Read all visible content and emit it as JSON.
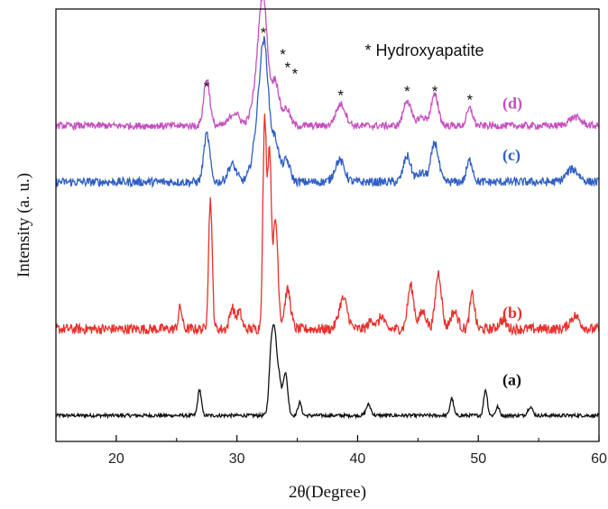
{
  "chart_data": {
    "type": "line",
    "xlabel": "2θ(Degree)",
    "ylabel": "Intensity (a. u.)",
    "xlim": [
      15,
      60
    ],
    "xticks": [
      "20",
      "30",
      "40",
      "50",
      "60"
    ],
    "y_ticks_shown": false,
    "legend": {
      "text": "* Hydroxyapatite",
      "position": "top-right"
    },
    "peak_marker": "*",
    "hydroxyapatite_peaks": [
      27.5,
      32.2,
      33.2,
      33.6,
      34.1,
      38.6,
      44.1,
      46.4,
      49.3
    ],
    "series": [
      {
        "name": "(a)",
        "color": "#111111",
        "baseline": 0.06,
        "noise": 0.004,
        "peaks": [
          [
            26.9,
            0.06,
            0.15
          ],
          [
            32.9,
            0.18,
            0.2
          ],
          [
            33.2,
            0.12,
            0.15
          ],
          [
            33.5,
            0.08,
            0.15
          ],
          [
            34.0,
            0.1,
            0.2
          ],
          [
            35.2,
            0.03,
            0.15
          ],
          [
            40.9,
            0.025,
            0.2
          ],
          [
            47.8,
            0.04,
            0.15
          ],
          [
            50.6,
            0.06,
            0.15
          ],
          [
            51.6,
            0.02,
            0.15
          ],
          [
            54.3,
            0.02,
            0.2
          ]
        ]
      },
      {
        "name": "(b)",
        "color": "#e8312c",
        "baseline": 0.26,
        "noise": 0.012,
        "peaks": [
          [
            25.3,
            0.05,
            0.15
          ],
          [
            27.8,
            0.3,
            0.15
          ],
          [
            29.6,
            0.05,
            0.2
          ],
          [
            30.2,
            0.04,
            0.2
          ],
          [
            32.3,
            0.48,
            0.15
          ],
          [
            32.7,
            0.4,
            0.15
          ],
          [
            33.2,
            0.25,
            0.2
          ],
          [
            34.2,
            0.09,
            0.25
          ],
          [
            38.8,
            0.07,
            0.35
          ],
          [
            41.2,
            0.02,
            0.3
          ],
          [
            42.0,
            0.03,
            0.2
          ],
          [
            44.4,
            0.1,
            0.25
          ],
          [
            45.4,
            0.04,
            0.3
          ],
          [
            46.7,
            0.13,
            0.25
          ],
          [
            48.0,
            0.04,
            0.3
          ],
          [
            49.5,
            0.08,
            0.2
          ],
          [
            52.0,
            0.02,
            0.3
          ],
          [
            58.0,
            0.03,
            0.4
          ]
        ]
      },
      {
        "name": "(c)",
        "color": "#2f5fc4",
        "baseline": 0.6,
        "noise": 0.01,
        "peaks": [
          [
            27.5,
            0.11,
            0.25
          ],
          [
            29.6,
            0.04,
            0.35
          ],
          [
            31.9,
            0.14,
            0.5
          ],
          [
            32.3,
            0.22,
            0.35
          ],
          [
            33.2,
            0.09,
            0.3
          ],
          [
            34.1,
            0.05,
            0.3
          ],
          [
            38.5,
            0.05,
            0.4
          ],
          [
            44.1,
            0.06,
            0.3
          ],
          [
            45.3,
            0.02,
            0.4
          ],
          [
            46.4,
            0.09,
            0.3
          ],
          [
            49.3,
            0.05,
            0.25
          ],
          [
            57.8,
            0.03,
            0.5
          ]
        ]
      },
      {
        "name": "(d)",
        "color": "#c64fc0",
        "baseline": 0.73,
        "noise": 0.008,
        "peaks": [
          [
            27.5,
            0.11,
            0.25
          ],
          [
            29.8,
            0.03,
            0.4
          ],
          [
            31.9,
            0.12,
            0.5
          ],
          [
            32.2,
            0.2,
            0.35
          ],
          [
            33.2,
            0.1,
            0.3
          ],
          [
            34.1,
            0.04,
            0.3
          ],
          [
            38.6,
            0.05,
            0.4
          ],
          [
            44.1,
            0.06,
            0.3
          ],
          [
            45.3,
            0.02,
            0.4
          ],
          [
            46.4,
            0.07,
            0.3
          ],
          [
            49.3,
            0.04,
            0.25
          ],
          [
            58.0,
            0.02,
            0.5
          ]
        ]
      }
    ]
  }
}
